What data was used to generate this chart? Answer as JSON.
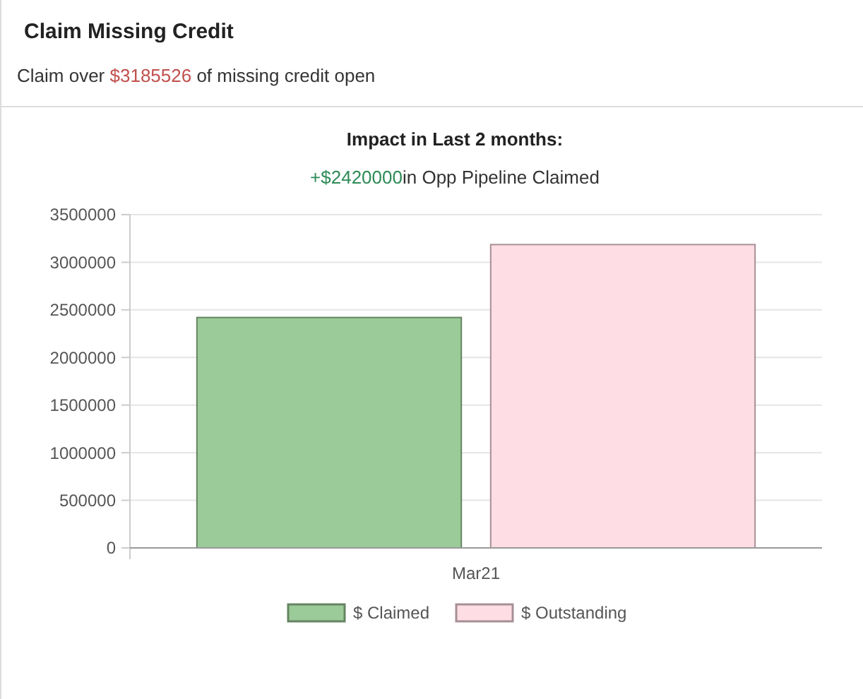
{
  "chart_data": {
    "type": "bar",
    "title": "Impact in Last 2 months:",
    "subtitle": "+$2420000in Opp Pipeline Claimed",
    "annotations": [
      "Claim Missing Credit",
      "Claim over  $3185526  of missing credit open"
    ],
    "categories": [
      "Mar21"
    ],
    "series": [
      {
        "name": "$ Claimed",
        "color": "#9bcb98",
        "values": [
          2420000
        ]
      },
      {
        "name": "$ Outstanding",
        "color": "#ffdde4",
        "values": [
          3185526
        ]
      }
    ],
    "ylim": [
      0,
      3500000
    ],
    "yticks": [
      0,
      500000,
      1000000,
      1500000,
      2000000,
      2500000,
      3000000,
      3500000
    ],
    "grid": "y",
    "legend": "bottom"
  }
}
